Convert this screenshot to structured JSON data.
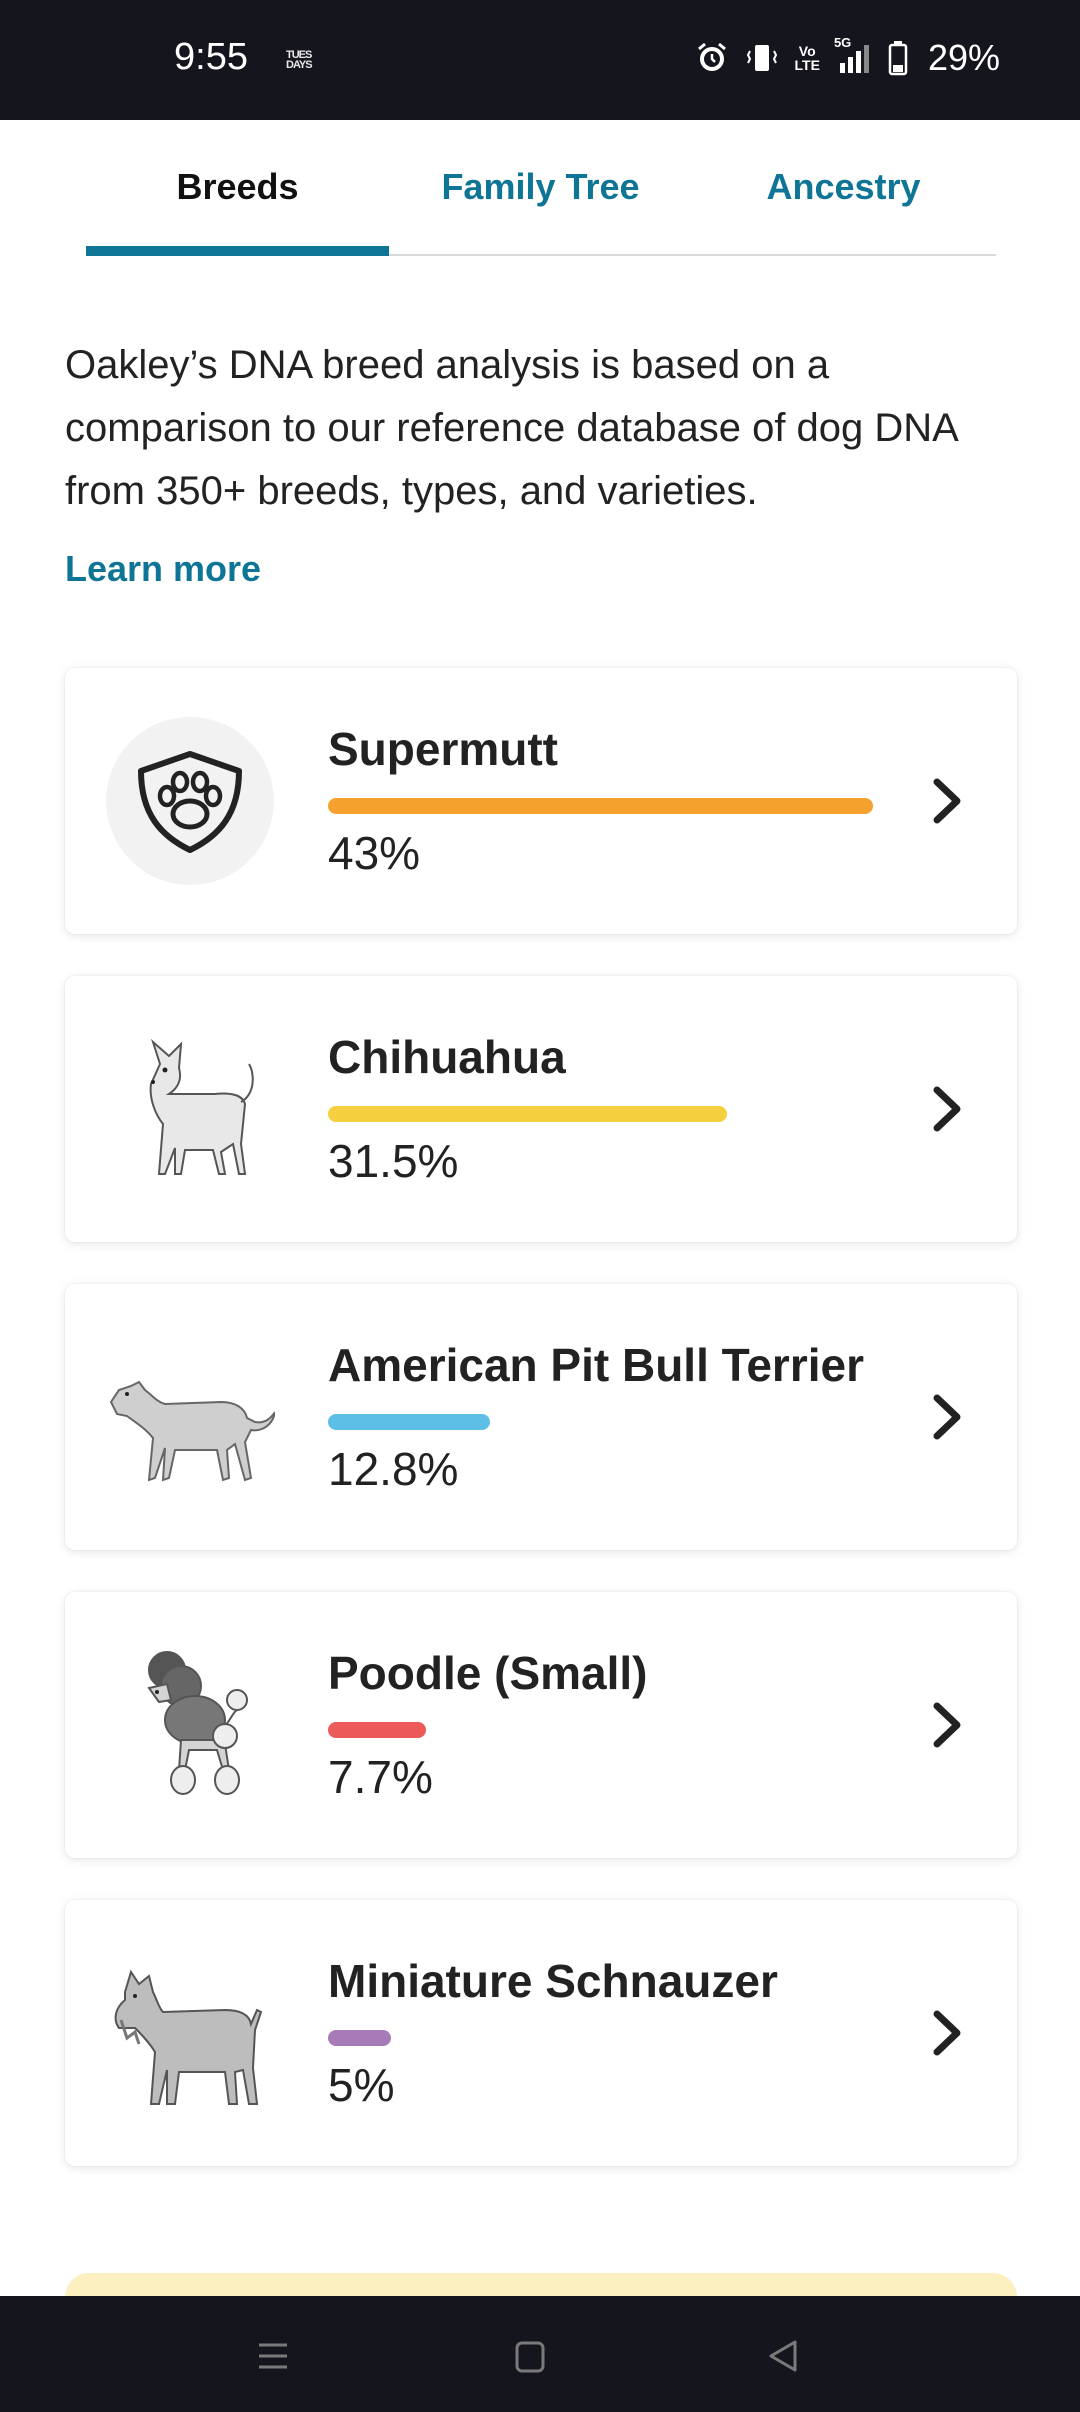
{
  "status_bar": {
    "time": "9:55",
    "mini_label_top": "TUES",
    "mini_label_bottom": "DAYS",
    "lte_top": "Vo",
    "lte_bottom": "LTE",
    "network": "5G",
    "battery": "29%"
  },
  "tabs": [
    {
      "label": "Breeds",
      "active": true
    },
    {
      "label": "Family Tree",
      "active": false
    },
    {
      "label": "Ancestry",
      "active": false
    }
  ],
  "intro_text": "Oakley’s DNA breed analysis is based on a comparison to our reference database of dog DNA from 350+ breeds, types, and varieties.",
  "learn_more": "Learn more",
  "breeds": [
    {
      "name": "Supermutt",
      "percent_label": "43%",
      "fraction": 1.0,
      "color": "#f4a22d",
      "icon": "paw-shield-icon"
    },
    {
      "name": "Chihuahua",
      "percent_label": "31.5%",
      "fraction": 0.733,
      "color": "#f5cf3e",
      "icon": "chihuahua-illustration"
    },
    {
      "name": "American Pit Bull Terrier",
      "percent_label": "12.8%",
      "fraction": 0.298,
      "color": "#5ebfe6",
      "icon": "pit-bull-illustration"
    },
    {
      "name": "Poodle (Small)",
      "percent_label": "7.7%",
      "fraction": 0.179,
      "color": "#ec5a5a",
      "icon": "poodle-illustration"
    },
    {
      "name": "Miniature Schnauzer",
      "percent_label": "5%",
      "fraction": 0.116,
      "color": "#a77ab8",
      "icon": "schnauzer-illustration"
    }
  ],
  "colors": {
    "accent": "#0f7596",
    "status_bar": "#15151d",
    "promo": "#fcf0c0"
  }
}
